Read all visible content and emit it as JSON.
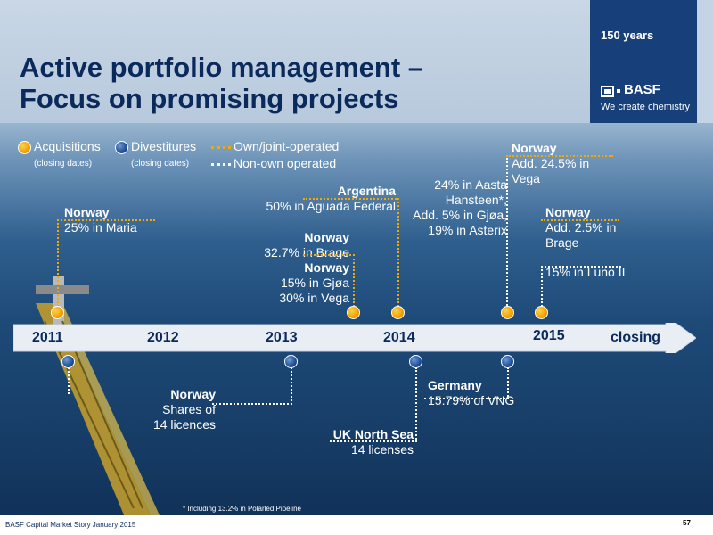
{
  "header": {
    "title_line1": "Active portfolio management –",
    "title_line2": "Focus on promising projects",
    "anniversary": "150 years",
    "brand": "BASF",
    "tagline": "We create chemistry"
  },
  "legend": {
    "acquisitions": "Acquisitions",
    "acquisitions_sub": "(closing dates)",
    "divestitures": "Divestitures",
    "divestitures_sub": "(closing dates)",
    "own_operated": "Own/joint-operated",
    "non_own_operated": "Non-own operated"
  },
  "timeline": {
    "years": [
      "2011",
      "2012",
      "2013",
      "2014",
      "2015"
    ],
    "closing_label": "closing"
  },
  "acquisitions": {
    "a1": {
      "country": "Norway",
      "detail": "25% in Maria"
    },
    "a2": {
      "country": "Norway",
      "detail": "32.7% in Brage"
    },
    "a3": {
      "country": "Norway",
      "line1": "15% in Gjøa",
      "line2": "30% in Vega"
    },
    "a4": {
      "country": "Argentina",
      "detail": "50% in Aguada Federal"
    },
    "a5": {
      "line1": "24% in Aasta",
      "line2": "Hansteen*,",
      "line3": "Add. 5% in Gjøa,",
      "line4": "19% in Asterix"
    },
    "a6": {
      "country": "Norway",
      "line1": "Add. 24.5% in",
      "line2": "Vega"
    },
    "a7": {
      "country": "Norway",
      "line1": "Add. 2.5% in",
      "line2": "Brage",
      "line3": "15% in Luno II"
    }
  },
  "divestitures": {
    "d1": {
      "country": "Norway",
      "line1": "Shares of",
      "line2": "14 licences"
    },
    "d2": {
      "country": "UK North Sea",
      "detail": "14 licenses"
    },
    "d3": {
      "country": "Germany",
      "detail": "15.79% of VNG"
    }
  },
  "footnote": "* Including 13.2% in Polarled Pipeline",
  "footer": {
    "source": "BASF Capital Market Story January 2015",
    "page": "57"
  },
  "colors": {
    "navy": "#0b2a5c",
    "orange": "#f2a900",
    "blue": "#1f4e96",
    "logo_panel": "#17407a"
  }
}
